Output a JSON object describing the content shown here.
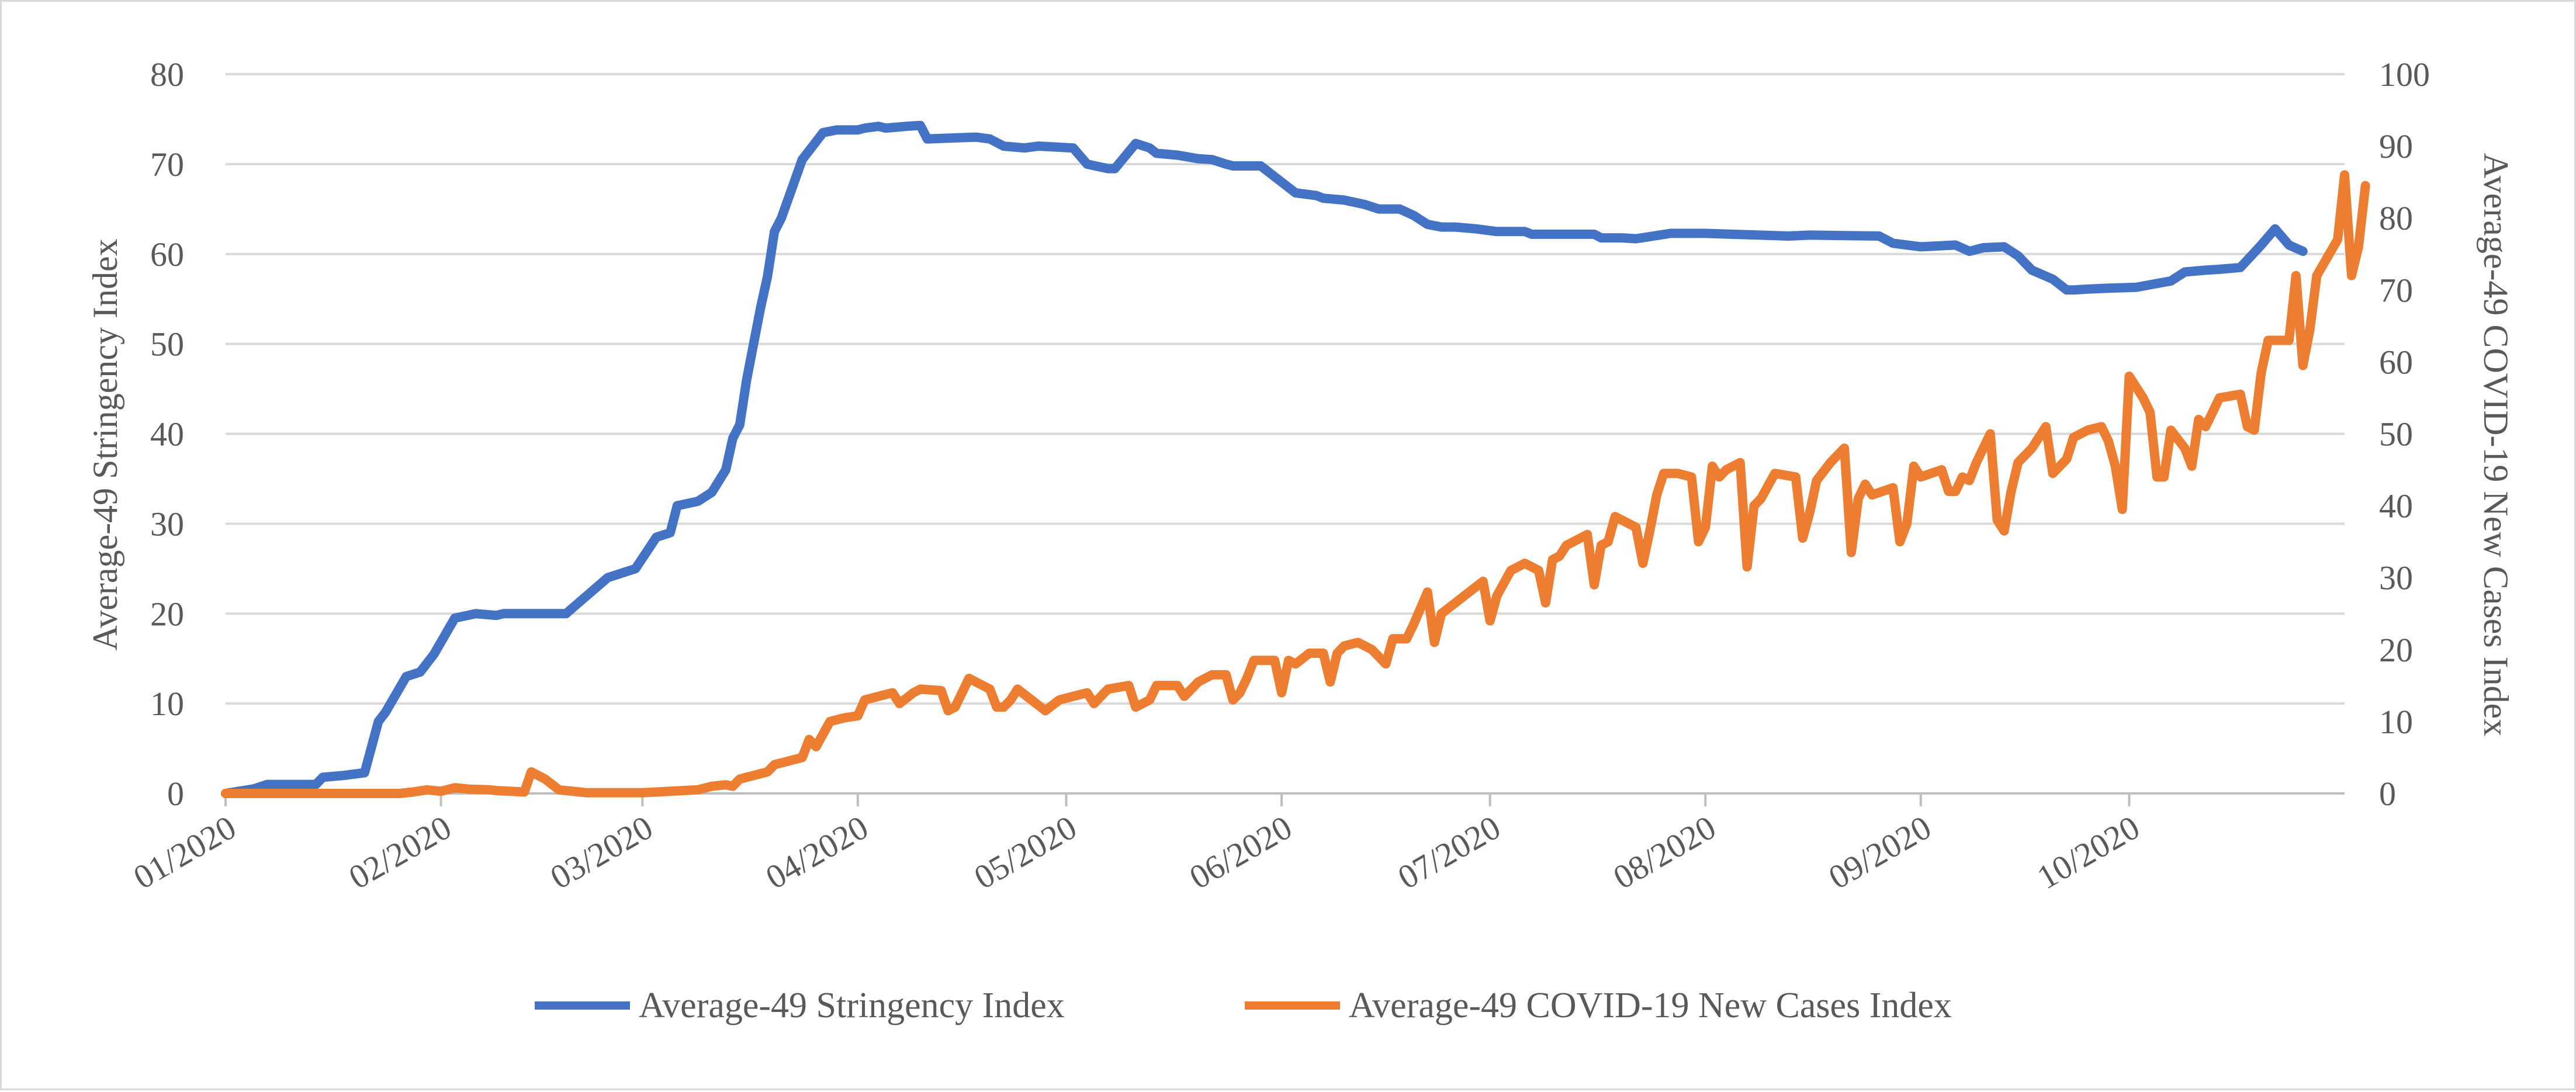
{
  "chart_data": {
    "type": "line",
    "title": "",
    "x_axis": {
      "tick_labels": [
        "01/2020",
        "02/2020",
        "03/2020",
        "04/2020",
        "05/2020",
        "06/2020",
        "07/2020",
        "08/2020",
        "09/2020",
        "10/2020"
      ],
      "tick_days": [
        0,
        31,
        60,
        91,
        121,
        152,
        182,
        213,
        244,
        274
      ],
      "range_days": [
        0,
        305
      ]
    },
    "y_left": {
      "label": "Average-49 Stringency Index",
      "range": [
        0,
        80
      ],
      "ticks": [
        0,
        10,
        20,
        30,
        40,
        50,
        60,
        70,
        80
      ],
      "tick_labels": [
        "0",
        "10",
        "20",
        "30",
        "40",
        "50",
        "60",
        "70",
        "80"
      ]
    },
    "y_right": {
      "label": "Average-49 COVID-19 New Cases Index",
      "range": [
        0,
        100
      ],
      "ticks": [
        0,
        10,
        20,
        30,
        40,
        50,
        60,
        70,
        80,
        90,
        100
      ],
      "tick_labels": [
        "0",
        "10",
        "20",
        "30",
        "40",
        "50",
        "60",
        "70",
        "80",
        "90",
        "100"
      ]
    },
    "grid": "horizontal",
    "legend_position": "bottom-center",
    "series": [
      {
        "name": "Average-49 Stringency Index",
        "axis": "left",
        "color": "#4472c4",
        "points": [
          [
            0,
            0
          ],
          [
            4,
            0.5
          ],
          [
            6,
            1
          ],
          [
            13,
            1
          ],
          [
            14,
            1.8
          ],
          [
            17,
            2
          ],
          [
            20,
            2.3
          ],
          [
            22,
            8
          ],
          [
            23,
            9
          ],
          [
            26,
            13
          ],
          [
            28,
            13.5
          ],
          [
            30,
            15.5
          ],
          [
            33,
            19.5
          ],
          [
            36,
            20
          ],
          [
            39,
            19.8
          ],
          [
            40,
            20
          ],
          [
            49,
            20
          ],
          [
            52,
            22
          ],
          [
            55,
            24
          ],
          [
            57,
            24.5
          ],
          [
            59,
            25
          ],
          [
            62,
            28.5
          ],
          [
            64,
            29
          ],
          [
            65,
            32
          ],
          [
            68,
            32.5
          ],
          [
            70,
            33.5
          ],
          [
            72,
            36
          ],
          [
            73,
            39.5
          ],
          [
            74,
            41
          ],
          [
            75,
            46
          ],
          [
            76,
            50
          ],
          [
            77,
            54
          ],
          [
            78,
            57.5
          ],
          [
            79,
            62.5
          ],
          [
            80,
            64
          ],
          [
            83,
            70.5
          ],
          [
            85,
            72.5
          ],
          [
            86,
            73.5
          ],
          [
            88,
            73.8
          ],
          [
            91,
            73.8
          ],
          [
            92,
            74
          ],
          [
            94,
            74.2
          ],
          [
            95,
            74
          ],
          [
            98,
            74.2
          ],
          [
            100,
            74.3
          ],
          [
            101,
            72.8
          ],
          [
            108,
            73
          ],
          [
            110,
            72.8
          ],
          [
            112,
            72
          ],
          [
            115,
            71.8
          ],
          [
            117,
            72
          ],
          [
            122,
            71.8
          ],
          [
            124,
            70
          ],
          [
            127,
            69.5
          ],
          [
            128,
            69.5
          ],
          [
            131,
            72.3
          ],
          [
            133,
            71.8
          ],
          [
            134,
            71.2
          ],
          [
            137,
            71
          ],
          [
            140,
            70.6
          ],
          [
            142,
            70.5
          ],
          [
            144,
            70
          ],
          [
            145,
            69.8
          ],
          [
            149,
            69.8
          ],
          [
            152,
            68
          ],
          [
            154,
            66.8
          ],
          [
            157,
            66.5
          ],
          [
            158,
            66.2
          ],
          [
            161,
            66
          ],
          [
            164,
            65.5
          ],
          [
            166,
            65
          ],
          [
            169,
            65
          ],
          [
            171,
            64.3
          ],
          [
            173,
            63.3
          ],
          [
            175,
            63
          ],
          [
            177,
            63
          ],
          [
            180,
            62.8
          ],
          [
            183,
            62.5
          ],
          [
            187,
            62.5
          ],
          [
            188,
            62.2
          ],
          [
            197,
            62.2
          ],
          [
            198,
            61.8
          ],
          [
            201,
            61.8
          ],
          [
            203,
            61.7
          ],
          [
            208,
            62.3
          ],
          [
            213,
            62.3
          ],
          [
            225,
            62
          ],
          [
            228,
            62.1
          ],
          [
            238,
            62
          ],
          [
            240,
            61.2
          ],
          [
            244,
            60.8
          ],
          [
            249,
            61
          ],
          [
            251,
            60.3
          ],
          [
            253,
            60.7
          ],
          [
            256,
            60.8
          ],
          [
            258,
            59.8
          ],
          [
            260,
            58.2
          ],
          [
            263,
            57.2
          ],
          [
            265,
            56
          ],
          [
            266,
            56
          ],
          [
            268,
            56.1
          ],
          [
            271,
            56.2
          ],
          [
            275,
            56.3
          ],
          [
            280,
            57
          ],
          [
            282,
            58
          ],
          [
            285,
            58.2
          ],
          [
            287,
            58.3
          ],
          [
            290,
            58.5
          ],
          [
            293,
            61
          ],
          [
            295,
            62.8
          ],
          [
            297,
            61
          ],
          [
            299,
            60.3
          ]
        ]
      },
      {
        "name": "Average-49 COVID-19 New Cases Index",
        "axis": "right",
        "color": "#ed7d31",
        "points": [
          [
            0,
            0
          ],
          [
            5,
            0
          ],
          [
            10,
            0
          ],
          [
            15,
            0
          ],
          [
            20,
            0
          ],
          [
            25,
            0
          ],
          [
            27,
            0.2
          ],
          [
            29,
            0.5
          ],
          [
            31,
            0.3
          ],
          [
            33,
            0.8
          ],
          [
            35,
            0.6
          ],
          [
            38,
            0.5
          ],
          [
            39,
            0.4
          ],
          [
            43,
            0.2
          ],
          [
            44,
            3
          ],
          [
            46,
            2
          ],
          [
            48,
            0.5
          ],
          [
            52,
            0.1
          ],
          [
            60,
            0.1
          ],
          [
            64,
            0.3
          ],
          [
            68,
            0.5
          ],
          [
            70,
            1
          ],
          [
            72,
            1.2
          ],
          [
            73,
            1
          ],
          [
            74,
            2
          ],
          [
            76,
            2.5
          ],
          [
            78,
            3
          ],
          [
            79,
            4
          ],
          [
            81,
            4.5
          ],
          [
            83,
            5
          ],
          [
            84,
            7.5
          ],
          [
            85,
            6.5
          ],
          [
            87,
            10
          ],
          [
            89,
            10.5
          ],
          [
            91,
            10.8
          ],
          [
            92,
            13
          ],
          [
            94,
            13.5
          ],
          [
            96,
            14
          ],
          [
            97,
            12.5
          ],
          [
            99,
            14
          ],
          [
            100,
            14.5
          ],
          [
            103,
            14.3
          ],
          [
            104,
            11.5
          ],
          [
            105,
            12
          ],
          [
            107,
            16
          ],
          [
            109,
            15
          ],
          [
            110,
            14.5
          ],
          [
            111,
            12
          ],
          [
            112,
            12
          ],
          [
            113,
            13
          ],
          [
            114,
            14.5
          ],
          [
            116,
            13
          ],
          [
            118,
            11.5
          ],
          [
            120,
            13
          ],
          [
            122,
            13.5
          ],
          [
            124,
            14
          ],
          [
            125,
            12.5
          ],
          [
            126,
            13.5
          ],
          [
            127,
            14.5
          ],
          [
            130,
            15
          ],
          [
            131,
            12
          ],
          [
            133,
            13
          ],
          [
            134,
            15
          ],
          [
            137,
            15
          ],
          [
            138,
            13.5
          ],
          [
            140,
            15.5
          ],
          [
            142,
            16.5
          ],
          [
            144,
            16.5
          ],
          [
            145,
            13
          ],
          [
            146,
            14
          ],
          [
            147,
            16
          ],
          [
            148,
            18.5
          ],
          [
            150,
            18.5
          ],
          [
            151,
            18.5
          ],
          [
            152,
            14
          ],
          [
            153,
            18.5
          ],
          [
            154,
            18
          ],
          [
            156,
            19.5
          ],
          [
            158,
            19.5
          ],
          [
            159,
            15.5
          ],
          [
            160,
            19.5
          ],
          [
            161,
            20.5
          ],
          [
            163,
            21
          ],
          [
            165,
            20
          ],
          [
            167,
            18
          ],
          [
            168,
            21.5
          ],
          [
            170,
            21.5
          ],
          [
            171,
            23.5
          ],
          [
            173,
            28
          ],
          [
            174,
            21
          ],
          [
            175,
            25
          ],
          [
            177,
            26.5
          ],
          [
            179,
            28
          ],
          [
            181,
            29.5
          ],
          [
            182,
            24
          ],
          [
            183,
            27.5
          ],
          [
            185,
            31
          ],
          [
            187,
            32
          ],
          [
            189,
            31
          ],
          [
            190,
            26.5
          ],
          [
            191,
            32.5
          ],
          [
            192,
            33
          ],
          [
            193,
            34.5
          ],
          [
            196,
            36
          ],
          [
            197,
            29
          ],
          [
            198,
            34.5
          ],
          [
            199,
            35
          ],
          [
            200,
            38.5
          ],
          [
            203,
            37
          ],
          [
            204,
            32
          ],
          [
            205,
            36.5
          ],
          [
            206,
            41.5
          ],
          [
            207,
            44.5
          ],
          [
            209,
            44.5
          ],
          [
            211,
            44
          ],
          [
            212,
            35
          ],
          [
            213,
            37
          ],
          [
            214,
            45.5
          ],
          [
            215,
            44
          ],
          [
            216,
            45
          ],
          [
            218,
            46
          ],
          [
            219,
            31.5
          ],
          [
            220,
            40
          ],
          [
            221,
            41
          ],
          [
            223,
            44.5
          ],
          [
            226,
            44
          ],
          [
            227,
            35.5
          ],
          [
            228,
            39
          ],
          [
            229,
            43.5
          ],
          [
            231,
            46
          ],
          [
            233,
            48
          ],
          [
            234,
            33.5
          ],
          [
            235,
            41
          ],
          [
            236,
            43
          ],
          [
            237,
            41.5
          ],
          [
            240,
            42.5
          ],
          [
            241,
            35
          ],
          [
            242,
            37.5
          ],
          [
            243,
            45.5
          ],
          [
            244,
            44
          ],
          [
            247,
            45
          ],
          [
            248,
            42
          ],
          [
            249,
            42
          ],
          [
            250,
            44
          ],
          [
            251,
            43.5
          ],
          [
            252,
            46
          ],
          [
            254,
            50
          ],
          [
            255,
            38
          ],
          [
            256,
            36.5
          ],
          [
            257,
            42
          ],
          [
            258,
            46
          ],
          [
            260,
            48
          ],
          [
            262,
            51
          ],
          [
            263,
            44.5
          ],
          [
            264,
            45.5
          ],
          [
            265,
            46.5
          ],
          [
            266,
            49.5
          ],
          [
            268,
            50.5
          ],
          [
            270,
            51
          ],
          [
            271,
            49
          ],
          [
            272,
            45.5
          ],
          [
            273,
            39.5
          ],
          [
            274,
            58
          ],
          [
            276,
            55
          ],
          [
            277,
            53
          ],
          [
            278,
            44
          ],
          [
            279,
            44
          ],
          [
            280,
            50.5
          ],
          [
            282,
            48
          ],
          [
            283,
            45.5
          ],
          [
            284,
            52
          ],
          [
            285,
            51
          ],
          [
            287,
            55
          ],
          [
            290,
            55.5
          ],
          [
            291,
            51
          ],
          [
            292,
            50.5
          ],
          [
            293,
            58.5
          ],
          [
            294,
            63
          ],
          [
            297,
            63
          ],
          [
            298,
            72
          ],
          [
            299,
            59.5
          ],
          [
            300,
            64.5
          ],
          [
            301,
            72
          ],
          [
            304,
            77
          ],
          [
            305,
            86
          ],
          [
            306,
            72
          ],
          [
            307,
            76
          ],
          [
            308,
            84.5
          ]
        ]
      }
    ],
    "legend": [
      {
        "label": "Average-49 Stringency Index",
        "color": "#4472c4"
      },
      {
        "label": "Average-49 COVID-19 New Cases Index",
        "color": "#ed7d31"
      }
    ]
  }
}
